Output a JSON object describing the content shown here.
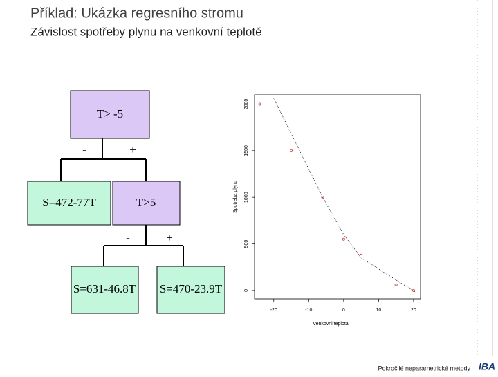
{
  "slide": {
    "title": "Příklad: Ukázka regresního stromu",
    "subtitle": "Závislost spotřeby plynu na venkovní teplotě",
    "footer": "Pokročilé neparametrické metody",
    "logo": "IBA"
  },
  "tree": {
    "nodes": [
      "T> -5",
      "S=472-77T",
      "T>5",
      "S=631-46.8T",
      "S=470-23.9T"
    ],
    "edges": [
      "-",
      "+",
      "-",
      "+"
    ]
  },
  "chart_data": {
    "type": "scatter",
    "x_label": "Venkovni teplota",
    "y_label": "Spotreba plynu",
    "xlim": [
      -25.5,
      22
    ],
    "ylim": [
      -90,
      2100
    ],
    "xticks": [
      -20,
      -10,
      0,
      10,
      20
    ],
    "yticks": [
      0,
      500,
      1000,
      1500,
      2000
    ],
    "series": [
      {
        "color": "#d04040",
        "x": [
          -24,
          -15,
          -6,
          0,
          5,
          15,
          20
        ],
        "values": [
          2000,
          1500,
          1000,
          550,
          400,
          60,
          0
        ]
      },
      {
        "color": "#000000",
        "x": [
          -20.5,
          -6,
          0,
          5,
          21
        ],
        "values": [
          2100,
          1000,
          600,
          350,
          -30
        ]
      }
    ]
  }
}
